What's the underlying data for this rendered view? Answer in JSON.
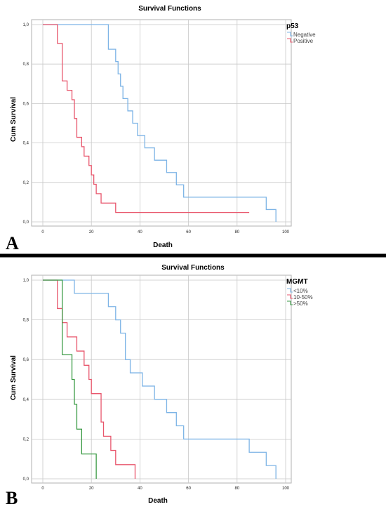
{
  "colors": {
    "blue": "#7db4e6",
    "red": "#e8566c",
    "green": "#3a9a44",
    "grid": "#c8c8c8",
    "frame": "#b0b0b0",
    "divider": "#000000"
  },
  "panels": [
    {
      "letter": "A"
    },
    {
      "letter": "B"
    }
  ],
  "chart_data": [
    {
      "type": "line",
      "title": "Survival Functions",
      "xlabel": "Death",
      "ylabel": "Cum Survival",
      "xlim": [
        0,
        100
      ],
      "ylim": [
        0,
        1
      ],
      "x_ticks": [
        0,
        20,
        40,
        60,
        80,
        100
      ],
      "y_ticks": [
        0.0,
        0.2,
        0.4,
        0.6,
        0.8,
        1.0
      ],
      "x_tick_labels": [
        "0",
        "20",
        "40",
        "60",
        "80",
        "100"
      ],
      "y_tick_labels": [
        "0,0",
        "0,2",
        "0,4",
        "0,6",
        "0,8",
        "1,0"
      ],
      "grid": true,
      "legend_title": "p53",
      "legend_position": "top-right",
      "series": [
        {
          "name": "Negative",
          "color": "blue",
          "x": [
            0,
            27,
            27,
            30,
            30,
            31,
            31,
            32,
            32,
            33,
            33,
            35,
            35,
            37,
            37,
            39,
            39,
            42,
            42,
            46,
            46,
            51,
            51,
            55,
            55,
            58,
            58,
            92,
            92,
            96,
            96
          ],
          "y": [
            1.0,
            1.0,
            0.875,
            0.875,
            0.8125,
            0.8125,
            0.75,
            0.75,
            0.6875,
            0.6875,
            0.625,
            0.625,
            0.5625,
            0.5625,
            0.5,
            0.5,
            0.4375,
            0.4375,
            0.375,
            0.375,
            0.3125,
            0.3125,
            0.25,
            0.25,
            0.1875,
            0.1875,
            0.125,
            0.125,
            0.0625,
            0.0625,
            0.0
          ]
        },
        {
          "name": "Positive",
          "color": "red",
          "x": [
            0,
            6,
            6,
            8,
            8,
            10,
            10,
            12,
            12,
            13,
            13,
            14,
            14,
            16,
            16,
            17,
            17,
            19,
            19,
            20,
            20,
            21,
            21,
            22,
            22,
            24,
            24,
            30,
            30,
            85
          ],
          "y": [
            1.0,
            1.0,
            0.9048,
            0.9048,
            0.7143,
            0.7143,
            0.6667,
            0.6667,
            0.619,
            0.619,
            0.5238,
            0.5238,
            0.4286,
            0.4286,
            0.381,
            0.381,
            0.3333,
            0.3333,
            0.2857,
            0.2857,
            0.2381,
            0.2381,
            0.1905,
            0.1905,
            0.1429,
            0.1429,
            0.0952,
            0.0952,
            0.0476,
            0.0476
          ]
        }
      ]
    },
    {
      "type": "line",
      "title": "Survival Functions",
      "xlabel": "Death",
      "ylabel": "Cum Survival",
      "xlim": [
        0,
        100
      ],
      "ylim": [
        0,
        1
      ],
      "x_ticks": [
        0,
        20,
        40,
        60,
        80,
        100
      ],
      "y_ticks": [
        0.0,
        0.2,
        0.4,
        0.6,
        0.8,
        1.0
      ],
      "x_tick_labels": [
        "0",
        "20",
        "40",
        "60",
        "80",
        "100"
      ],
      "y_tick_labels": [
        "0,0",
        "0,2",
        "0,4",
        "0,6",
        "0,8",
        "1,0"
      ],
      "grid": true,
      "legend_title": "MGMT",
      "legend_position": "top-right",
      "series": [
        {
          "name": "<10%",
          "color": "blue",
          "x": [
            0,
            13,
            13,
            27,
            27,
            30,
            30,
            32,
            32,
            34,
            34,
            36,
            36,
            41,
            41,
            46,
            46,
            51,
            51,
            55,
            55,
            58,
            58,
            85,
            85,
            92,
            92,
            96,
            96
          ],
          "y": [
            1.0,
            1.0,
            0.9333,
            0.9333,
            0.8667,
            0.8667,
            0.8,
            0.8,
            0.7333,
            0.7333,
            0.6,
            0.6,
            0.5333,
            0.5333,
            0.4667,
            0.4667,
            0.4,
            0.4,
            0.3333,
            0.3333,
            0.2667,
            0.2667,
            0.2,
            0.2,
            0.1333,
            0.1333,
            0.0667,
            0.0667,
            0.0
          ]
        },
        {
          "name": "10-50%",
          "color": "red",
          "x": [
            0,
            6,
            6,
            8,
            8,
            10,
            10,
            14,
            14,
            17,
            17,
            19,
            19,
            20,
            20,
            24,
            24,
            25,
            25,
            28,
            28,
            30,
            30,
            33,
            33,
            38,
            38
          ],
          "y": [
            1.0,
            1.0,
            0.8571,
            0.8571,
            0.7857,
            0.7857,
            0.7143,
            0.7143,
            0.6429,
            0.6429,
            0.5714,
            0.5714,
            0.5,
            0.5,
            0.4286,
            0.4286,
            0.2857,
            0.2857,
            0.2143,
            0.2143,
            0.1429,
            0.1429,
            0.0714,
            0.0714,
            0.0714,
            0.0714,
            0.0
          ]
        },
        {
          "name": ">50%",
          "color": "green",
          "x": [
            0,
            8,
            8,
            12,
            12,
            13,
            13,
            14,
            14,
            16,
            16,
            22,
            22
          ],
          "y": [
            1.0,
            1.0,
            0.625,
            0.625,
            0.5,
            0.5,
            0.375,
            0.375,
            0.25,
            0.25,
            0.125,
            0.125,
            0.0
          ]
        }
      ]
    }
  ]
}
